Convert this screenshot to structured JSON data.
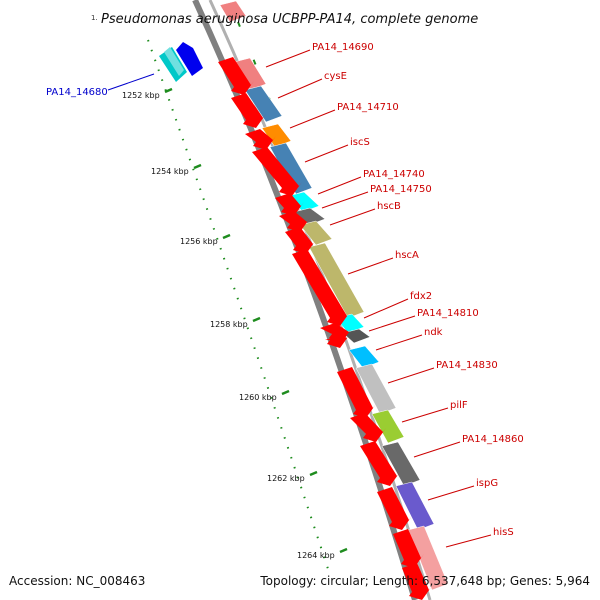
{
  "title": "Pseudomonas aeruginosa UCBPP-PA14, complete genome",
  "title_prefix": "1.",
  "footer": {
    "accession": "Accession: NC_008463",
    "summary": "Topology: circular; Length: 6,537,648 bp; Genes: 5,964"
  },
  "kbp_labels": [
    "1252 kbp",
    "1254 kbp",
    "1256 kbp",
    "1258 kbp",
    "1260 kbp",
    "1262 kbp",
    "1264 kbp"
  ],
  "colors": {
    "forward_gene": "#ff0000",
    "reverse_gene": "#00c8c8",
    "reverse_highlight": "#0000ee",
    "backbone": "#808080",
    "tick": "#1e8c1e",
    "label_red": "#cc0000",
    "label_blue": "#0000cc"
  },
  "genes": [
    {
      "name": "PA14_14680",
      "color": "#0000cc"
    },
    {
      "name": "PA14_14690",
      "color": "#cc0000"
    },
    {
      "name": "cysE",
      "color": "#cc0000"
    },
    {
      "name": "PA14_14710",
      "color": "#cc0000"
    },
    {
      "name": "iscS",
      "color": "#cc0000"
    },
    {
      "name": "PA14_14740",
      "color": "#cc0000"
    },
    {
      "name": "PA14_14750",
      "color": "#cc0000"
    },
    {
      "name": "hscB",
      "color": "#cc0000"
    },
    {
      "name": "hscA",
      "color": "#cc0000"
    },
    {
      "name": "fdx2",
      "color": "#cc0000"
    },
    {
      "name": "PA14_14810",
      "color": "#cc0000"
    },
    {
      "name": "ndk",
      "color": "#cc0000"
    },
    {
      "name": "PA14_14830",
      "color": "#cc0000"
    },
    {
      "name": "pilF",
      "color": "#cc0000"
    },
    {
      "name": "PA14_14860",
      "color": "#cc0000"
    },
    {
      "name": "ispG",
      "color": "#cc0000"
    },
    {
      "name": "hisS",
      "color": "#cc0000"
    }
  ],
  "cog_colors": [
    "#f08080",
    "#f08080",
    "#4682b4",
    "#ff8c00",
    "#4682b4",
    "#00ffff",
    "#696969",
    "#bdb76b",
    "#bdb76b",
    "#00ffff",
    "#555555",
    "#00bfff",
    "#c0c0c0",
    "#9acd32",
    "#696969",
    "#6a5acd",
    "#f4a0a0"
  ]
}
